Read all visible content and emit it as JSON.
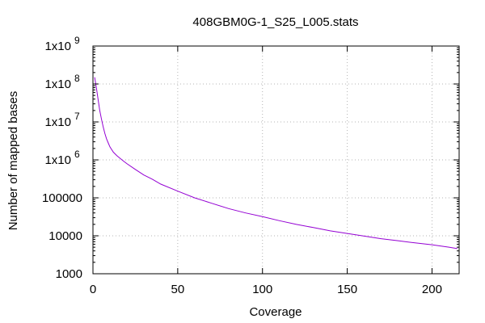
{
  "chart_data": {
    "type": "line",
    "title": "408GBM0G-1_S25_L005.stats",
    "xlabel": "Coverage",
    "ylabel": "Number of mapped bases",
    "xlim": [
      0,
      216
    ],
    "ylim": [
      1000,
      1000000000
    ],
    "yscale": "log",
    "grid": true,
    "x_ticks": [
      0,
      50,
      100,
      150,
      200
    ],
    "y_ticks": [
      {
        "value": 1000,
        "label": "1000"
      },
      {
        "value": 10000,
        "label": "10000"
      },
      {
        "value": 100000,
        "label": "100000"
      },
      {
        "value": 1000000,
        "base": "1x10",
        "exp": "6"
      },
      {
        "value": 10000000,
        "base": "1x10",
        "exp": "7"
      },
      {
        "value": 100000000,
        "base": "1x10",
        "exp": "8"
      },
      {
        "value": 1000000000,
        "base": "1x10",
        "exp": "9"
      }
    ],
    "series": [
      {
        "color": "#9400d3",
        "x": [
          1,
          2,
          3,
          4,
          5,
          6,
          7,
          8,
          9,
          10,
          12,
          14,
          16,
          18,
          20,
          25,
          30,
          35,
          40,
          50,
          60,
          70,
          80,
          90,
          100,
          110,
          120,
          130,
          140,
          150,
          160,
          170,
          180,
          190,
          200,
          210,
          215
        ],
        "y": [
          150000000,
          80000000,
          40000000,
          20000000,
          12000000,
          7500000,
          5000000,
          3600000,
          2800000,
          2200000,
          1600000,
          1300000,
          1100000,
          930000,
          800000,
          560000,
          400000,
          310000,
          230000,
          150000,
          100000,
          72000,
          52000,
          40000,
          32000,
          25000,
          20000,
          16500,
          13500,
          11500,
          9800,
          8400,
          7400,
          6500,
          5800,
          5000,
          4600
        ]
      }
    ]
  }
}
